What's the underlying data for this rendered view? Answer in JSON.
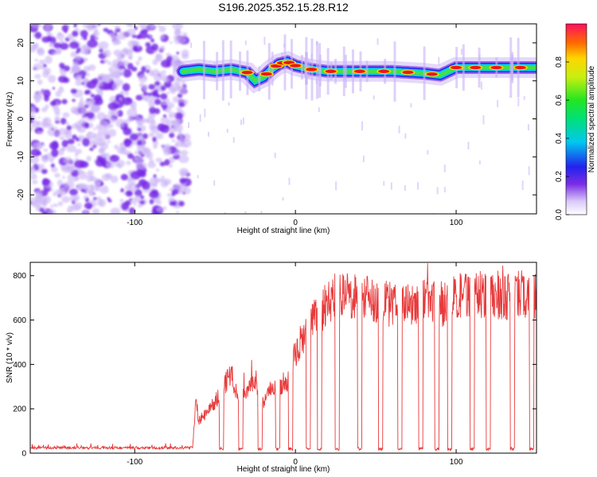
{
  "figure_title": "S196.2025.352.15.28.R12",
  "chart_data": [
    {
      "type": "heatmap",
      "title": "S196.2025.352.15.28.R12",
      "xlabel": "Height of straight line (km)",
      "ylabel": "Frequency (Hz)",
      "xlim": [
        -165,
        150
      ],
      "ylim": [
        -25,
        25
      ],
      "xticks": [
        -100,
        0,
        100
      ],
      "yticks": [
        -20,
        -10,
        0,
        10,
        20
      ],
      "colorbar": {
        "label": "Normalized spectral amplitude",
        "range": [
          0,
          1
        ],
        "ticks": [
          "0.0",
          "0.2",
          "0.4",
          "0.6",
          "0.8"
        ],
        "ticks_values": [
          0.0,
          0.2,
          0.4,
          0.6,
          0.8
        ]
      },
      "noise_region_x": [
        -165,
        -70
      ],
      "carrier_track": {
        "x": [
          -70,
          -60,
          -50,
          -40,
          -30,
          -25,
          -20,
          -15,
          -10,
          -5,
          0,
          10,
          20,
          40,
          60,
          80,
          90,
          100,
          120,
          150
        ],
        "freq": [
          12.5,
          13,
          12.5,
          13,
          12.2,
          10,
          11,
          13,
          14.5,
          15,
          14,
          13,
          12.5,
          12.5,
          12.5,
          12,
          11.5,
          13.5,
          13.5,
          13.5
        ]
      }
    },
    {
      "type": "line",
      "xlabel": "Height of straight line (km)",
      "ylabel": "SNR (10 * v/v)",
      "xlim": [
        -165,
        150
      ],
      "ylim": [
        0,
        860
      ],
      "xticks": [
        -100,
        0,
        100
      ],
      "yticks": [
        0,
        200,
        400,
        600,
        800
      ],
      "color": "#e8393a",
      "series": {
        "name": "SNR",
        "x": [
          -165,
          -150,
          -130,
          -110,
          -90,
          -75,
          -64,
          -62,
          -60,
          -55,
          -50,
          -45,
          -40,
          -35,
          -30,
          -25,
          -20,
          -15,
          -10,
          -5,
          0,
          5,
          10,
          15,
          20,
          25,
          30,
          40,
          50,
          60,
          70,
          80,
          90,
          100,
          110,
          120,
          130,
          140,
          150
        ],
        "values": [
          20,
          22,
          25,
          18,
          22,
          20,
          25,
          230,
          150,
          190,
          240,
          300,
          380,
          230,
          300,
          350,
          220,
          300,
          320,
          330,
          470,
          540,
          600,
          650,
          700,
          730,
          740,
          720,
          700,
          690,
          700,
          710,
          690,
          720,
          740,
          720,
          730,
          740,
          720
        ]
      },
      "dropouts_x": [
        -46,
        -34,
        -22,
        -11,
        -3,
        8,
        15,
        26,
        40,
        53,
        65,
        78,
        88,
        96,
        110,
        120,
        135,
        147
      ]
    }
  ],
  "colors": {
    "low": "#c9b3f5",
    "noise": "#7a2de6",
    "track_outer": "#00d1e8",
    "track_mid": "#44e04a",
    "track_core": "#e81818",
    "line": "#e8393a"
  }
}
